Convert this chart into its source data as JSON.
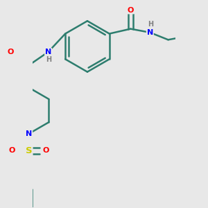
{
  "bg_color": "#e8e8e8",
  "bond_color": "#2d7d6e",
  "bond_width": 1.8,
  "atom_colors": {
    "N": "#0000ff",
    "O": "#ff0000",
    "S": "#cccc00",
    "H": "#808080"
  },
  "font_size": 7.5
}
